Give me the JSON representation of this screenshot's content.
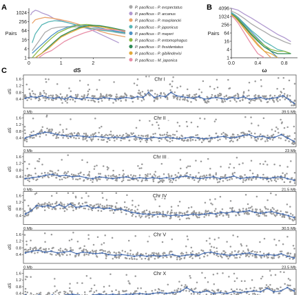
{
  "panels": {
    "a": "A",
    "b": "B",
    "c": "C"
  },
  "chart_data": [
    {
      "id": "A",
      "type": "line",
      "xlabel": "dS",
      "ylabel": "Pairs",
      "y_scale": "log2",
      "xlim": [
        0,
        3
      ],
      "ylim": [
        1,
        2048
      ],
      "xticks": [
        "0",
        "1",
        "2"
      ],
      "yticks": [
        "1024",
        "256",
        "64",
        "16",
        "4",
        "1"
      ],
      "series": [
        {
          "name": "P. pacificus - P. exspectatus",
          "color": "#a9a9a9",
          "x": [
            0.1,
            0.2,
            0.3,
            0.4,
            0.5,
            0.7,
            0.9,
            1.2,
            1.5,
            1.8,
            2.1,
            2.4,
            2.7,
            3.0
          ],
          "y": [
            3,
            6,
            12,
            25,
            50,
            90,
            110,
            120,
            115,
            100,
            90,
            70,
            50,
            40
          ]
        },
        {
          "name": "P. pacificus - P. arcanus",
          "color": "#b19ad0",
          "x": [
            0.05,
            0.1,
            0.2,
            0.3,
            0.4,
            0.6,
            0.8,
            1.0,
            1.3,
            1.6,
            1.9,
            2.2,
            2.5,
            2.8
          ],
          "y": [
            700,
            1100,
            1500,
            1300,
            1000,
            700,
            400,
            300,
            200,
            120,
            80,
            40,
            20,
            10
          ]
        },
        {
          "name": "P. pacificus - P. maxplancki",
          "color": "#e9a36b",
          "x": [
            0.1,
            0.2,
            0.3,
            0.5,
            0.7,
            1.0,
            1.3,
            1.6,
            1.9,
            2.2,
            2.5,
            2.8,
            3.0
          ],
          "y": [
            200,
            350,
            400,
            500,
            450,
            350,
            250,
            160,
            100,
            60,
            40,
            30,
            25
          ]
        },
        {
          "name": "P. pacificus - P. japonicus",
          "color": "#58b6b5",
          "x": [
            0.1,
            0.2,
            0.3,
            0.4,
            0.6,
            0.8,
            1.0,
            1.3,
            1.6,
            1.9,
            2.2,
            2.5,
            2.8,
            3.0
          ],
          "y": [
            10,
            40,
            80,
            160,
            250,
            300,
            280,
            200,
            130,
            90,
            70,
            60,
            50,
            45
          ]
        },
        {
          "name": "P. pacificus - P. mayeri",
          "color": "#4f93c5",
          "x": [
            0.1,
            0.3,
            0.5,
            0.7,
            0.9,
            1.2,
            1.5,
            1.8,
            2.1,
            2.4,
            2.7,
            3.0
          ],
          "y": [
            2,
            5,
            12,
            30,
            60,
            110,
            160,
            140,
            110,
            80,
            60,
            50
          ]
        },
        {
          "name": "P. pacificus - P. entomophagus",
          "color": "#8cba46",
          "x": [
            0.1,
            0.3,
            0.5,
            0.7,
            0.9,
            1.2,
            1.5,
            1.8,
            2.1,
            2.4,
            2.7,
            3.0
          ],
          "y": [
            1,
            3,
            8,
            20,
            45,
            90,
            150,
            170,
            140,
            100,
            75,
            60
          ]
        },
        {
          "name": "P. pacificus - P. fissidentatus",
          "color": "#2d8a55",
          "x": [
            0.2,
            0.4,
            0.6,
            0.8,
            1.0,
            1.3,
            1.6,
            1.9,
            2.2,
            2.5,
            2.8,
            3.0
          ],
          "y": [
            1,
            2,
            5,
            12,
            28,
            60,
            110,
            150,
            140,
            110,
            80,
            65
          ]
        },
        {
          "name": "P. pacificus - P. gibilindevisi",
          "color": "#e2a93a",
          "x": [
            0.2,
            0.4,
            0.6,
            0.8,
            1.0,
            1.3,
            1.6,
            1.9,
            2.2,
            2.5,
            2.8,
            3.0
          ],
          "y": [
            1,
            2,
            4,
            10,
            24,
            50,
            95,
            130,
            120,
            95,
            70,
            55
          ]
        },
        {
          "name": "P. pacificus - M. japonica",
          "color": "#e88ea6",
          "x": [
            0.3,
            0.5,
            0.7,
            0.9,
            1.1,
            1.4,
            1.7,
            2.0,
            2.3,
            2.6,
            2.9,
            3.0
          ],
          "y": [
            1,
            2,
            3,
            6,
            12,
            25,
            45,
            70,
            80,
            75,
            65,
            60
          ]
        }
      ]
    },
    {
      "id": "B",
      "type": "line",
      "xlabel": "ω",
      "ylabel": "Pairs",
      "y_scale": "log2",
      "xlim": [
        0,
        1
      ],
      "ylim": [
        1,
        4096
      ],
      "xticks": [
        "0.0",
        "0.4",
        "0.8"
      ],
      "yticks": [
        "4096",
        "1024",
        "256",
        "64",
        "16",
        "4",
        "1"
      ],
      "series": [
        {
          "name": "P. pacificus - P. exspectatus",
          "color": "#a9a9a9",
          "x": [
            0.0,
            0.05,
            0.1,
            0.2,
            0.3,
            0.4,
            0.5,
            0.6,
            0.7,
            0.8,
            0.9
          ],
          "y": [
            2500,
            2000,
            1500,
            700,
            300,
            150,
            80,
            40,
            25,
            15,
            10
          ]
        },
        {
          "name": "P. pacificus - P. arcanus",
          "color": "#b19ad0",
          "x": [
            0.0,
            0.05,
            0.1,
            0.2,
            0.3,
            0.4,
            0.5,
            0.6,
            0.7,
            0.8,
            0.9
          ],
          "y": [
            4096,
            3500,
            3000,
            1500,
            800,
            400,
            200,
            100,
            50,
            30,
            15
          ]
        },
        {
          "name": "P. pacificus - P. maxplancki",
          "color": "#e9a36b",
          "x": [
            0.0,
            0.05,
            0.1,
            0.2,
            0.3,
            0.4,
            0.5,
            0.6
          ],
          "y": [
            1500,
            1000,
            600,
            150,
            40,
            10,
            3,
            1
          ]
        },
        {
          "name": "P. pacificus - P. japonicus",
          "color": "#58b6b5",
          "x": [
            0.0,
            0.05,
            0.1,
            0.2,
            0.3,
            0.4,
            0.5,
            0.6,
            0.7,
            0.8,
            0.9
          ],
          "y": [
            2000,
            1400,
            900,
            300,
            100,
            40,
            15,
            8,
            4,
            3,
            2
          ]
        },
        {
          "name": "P. pacificus - P. mayeri",
          "color": "#4f93c5",
          "x": [
            0.0,
            0.05,
            0.1,
            0.2,
            0.3,
            0.4,
            0.5,
            0.6,
            0.7
          ],
          "y": [
            1800,
            1200,
            800,
            250,
            80,
            25,
            8,
            3,
            1
          ]
        },
        {
          "name": "P. pacificus - P. entomophagus",
          "color": "#8cba46",
          "x": [
            0.0,
            0.05,
            0.1,
            0.2,
            0.3,
            0.4,
            0.5,
            0.6,
            0.7,
            0.8,
            0.9
          ],
          "y": [
            1600,
            1100,
            700,
            200,
            60,
            20,
            8,
            4,
            3,
            3,
            2
          ]
        },
        {
          "name": "P. pacificus - P. fissidentatus",
          "color": "#2d8a55",
          "x": [
            0.0,
            0.05,
            0.1,
            0.2,
            0.3,
            0.4,
            0.5,
            0.6,
            0.7,
            0.8,
            0.9
          ],
          "y": [
            1500,
            1000,
            600,
            180,
            50,
            16,
            6,
            3,
            2,
            2,
            2
          ]
        },
        {
          "name": "P. pacificus - P. gibilindevisi",
          "color": "#e2a93a",
          "x": [
            0.0,
            0.05,
            0.1,
            0.2,
            0.3,
            0.4,
            0.5,
            0.6,
            0.7
          ],
          "y": [
            1400,
            900,
            500,
            120,
            30,
            8,
            3,
            2,
            1
          ]
        },
        {
          "name": "P. pacificus - M. japonica",
          "color": "#e88ea6",
          "x": [
            0.0,
            0.05,
            0.1,
            0.2,
            0.3,
            0.4,
            0.5
          ],
          "y": [
            1200,
            700,
            350,
            60,
            10,
            2,
            1
          ]
        }
      ]
    },
    {
      "id": "C",
      "type": "scatter",
      "ylabel": "dS",
      "ylim": [
        0,
        1.8
      ],
      "yticks": [
        "0.4",
        "0.8",
        "1.2",
        "1.6"
      ],
      "point_color": "#9a9a9a",
      "line_color": "#4a6fb0",
      "chromosomes": [
        {
          "name": "Chr I",
          "length_label": "39.5 Mb",
          "length": 39.5,
          "trend": [
            0.45,
            0.55,
            0.5,
            0.6,
            0.5,
            0.45,
            0.5,
            0.4,
            0.55,
            0.45,
            0.4,
            0.5,
            0.45,
            0.4,
            0.5,
            0.45,
            0.4,
            0.45,
            0.5,
            0.45,
            0.55,
            0.5,
            0.8,
            0.5,
            0.6,
            0.55,
            0.8,
            0.6,
            0.55,
            0.5,
            0.45,
            0.55,
            0.4,
            0.45,
            0.5,
            0.45,
            0.4,
            0.5,
            0.45,
            0.55,
            0.4,
            0.45,
            0.5,
            0.4,
            0.45,
            0.5,
            0.6,
            0.4,
            0.15
          ]
        },
        {
          "name": "Chr II",
          "length_label": "23 Mb",
          "length": 23,
          "trend": [
            0.4,
            0.55,
            0.65,
            0.75,
            0.7,
            0.6,
            0.55,
            0.5,
            0.55,
            0.5,
            0.45,
            0.5,
            0.45,
            0.4,
            0.45,
            0.4,
            0.45,
            0.5,
            0.4,
            0.35,
            0.45,
            0.4,
            0.45,
            0.4,
            0.35,
            0.4,
            0.45,
            0.4,
            0.35,
            0.4,
            0.45,
            0.5,
            0.4,
            0.45,
            0.55,
            0.6,
            0.45,
            0.5,
            0.4,
            0.45,
            0.6,
            0.4,
            0.2
          ]
        },
        {
          "name": "Chr III",
          "length_label": "21.5 Mb",
          "length": 21.5,
          "trend": [
            0.3,
            0.35,
            0.4,
            0.5,
            0.55,
            0.45,
            0.5,
            0.4,
            0.45,
            0.35,
            0.3,
            0.4,
            0.35,
            0.3,
            0.35,
            0.4,
            0.3,
            0.35,
            0.3,
            0.35,
            0.3,
            0.35,
            0.3,
            0.4,
            0.45,
            0.35,
            0.3,
            0.35,
            0.4,
            0.3,
            0.35,
            0.45,
            0.3,
            0.35,
            0.4,
            0.35,
            0.3,
            0.35,
            0.4,
            0.3,
            0.2
          ]
        },
        {
          "name": "Chr IV",
          "length_label": "30.5 Mb",
          "length": 30.5,
          "trend": [
            0.5,
            0.7,
            1.0,
            0.95,
            1.0,
            0.9,
            1.05,
            0.9,
            1.1,
            0.9,
            0.95,
            1.0,
            0.85,
            0.9,
            0.8,
            0.85,
            0.75,
            0.8,
            0.7,
            0.6,
            0.55,
            0.5,
            0.5,
            0.45,
            0.5,
            0.45,
            0.4,
            0.45,
            0.4,
            0.45,
            0.5,
            0.45,
            0.5,
            0.55,
            0.5,
            0.6,
            0.55,
            0.65,
            0.6,
            0.65,
            0.7,
            0.6,
            0.55,
            0.6,
            0.65,
            0.55,
            0.5,
            0.4,
            0.3
          ]
        },
        {
          "name": "Chr V",
          "length_label": "23.5 Mb",
          "length": 23.5,
          "trend": [
            0.5,
            0.6,
            0.65,
            0.55,
            0.6,
            0.5,
            0.55,
            0.6,
            0.45,
            0.55,
            0.5,
            0.45,
            0.5,
            0.4,
            0.35,
            0.4,
            0.35,
            0.3,
            0.35,
            0.3,
            0.35,
            0.3,
            0.35,
            0.4,
            0.3,
            0.35,
            0.4,
            0.35,
            0.5,
            0.55,
            0.45,
            0.4,
            0.35,
            0.4,
            0.45,
            0.5,
            0.4,
            0.35,
            0.4,
            0.35,
            0.45,
            0.3,
            0.2
          ]
        },
        {
          "name": "Chr X",
          "length_label": "16.5 Mb",
          "length": 16.5,
          "trend": [
            0.3,
            0.25,
            0.3,
            0.25,
            0.3,
            0.25,
            0.3,
            0.35,
            0.3,
            0.25,
            0.3,
            0.35,
            0.3,
            0.35,
            0.3,
            0.35,
            0.35,
            0.4,
            0.35,
            0.4,
            0.45,
            0.4,
            0.45,
            0.5,
            0.75,
            0.5,
            0.45,
            0.55,
            0.4,
            0.45,
            0.4,
            0.5,
            0.45,
            0.5,
            0.55,
            0.5,
            0.7,
            0.5,
            0.55,
            0.75,
            0.55
          ]
        }
      ]
    }
  ],
  "common": {
    "start_label": "0 Mb"
  }
}
